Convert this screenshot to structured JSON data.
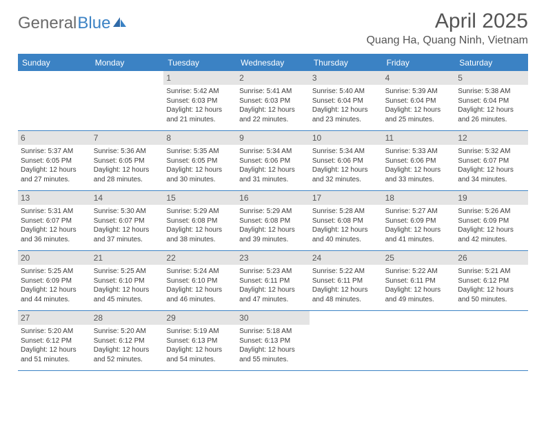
{
  "brand": {
    "name_gray": "General",
    "name_blue": "Blue"
  },
  "title": "April 2025",
  "location": "Quang Ha, Quang Ninh, Vietnam",
  "colors": {
    "accent": "#3b82c4",
    "daynum_bg": "#e4e4e4",
    "text": "#3a3a3a",
    "heading": "#555555",
    "background": "#ffffff"
  },
  "typography": {
    "title_fontsize_pt": 22,
    "location_fontsize_pt": 12,
    "weekday_fontsize_pt": 9,
    "daynum_fontsize_pt": 9,
    "body_fontsize_pt": 7.5,
    "font_family": "Arial"
  },
  "layout": {
    "columns": 7,
    "rows": 5,
    "leading_blanks": 2,
    "border_color": "#3b82c4"
  },
  "weekdays": [
    "Sunday",
    "Monday",
    "Tuesday",
    "Wednesday",
    "Thursday",
    "Friday",
    "Saturday"
  ],
  "days": [
    {
      "n": 1,
      "sunrise": "5:42 AM",
      "sunset": "6:03 PM",
      "daylight": "12 hours and 21 minutes."
    },
    {
      "n": 2,
      "sunrise": "5:41 AM",
      "sunset": "6:03 PM",
      "daylight": "12 hours and 22 minutes."
    },
    {
      "n": 3,
      "sunrise": "5:40 AM",
      "sunset": "6:04 PM",
      "daylight": "12 hours and 23 minutes."
    },
    {
      "n": 4,
      "sunrise": "5:39 AM",
      "sunset": "6:04 PM",
      "daylight": "12 hours and 25 minutes."
    },
    {
      "n": 5,
      "sunrise": "5:38 AM",
      "sunset": "6:04 PM",
      "daylight": "12 hours and 26 minutes."
    },
    {
      "n": 6,
      "sunrise": "5:37 AM",
      "sunset": "6:05 PM",
      "daylight": "12 hours and 27 minutes."
    },
    {
      "n": 7,
      "sunrise": "5:36 AM",
      "sunset": "6:05 PM",
      "daylight": "12 hours and 28 minutes."
    },
    {
      "n": 8,
      "sunrise": "5:35 AM",
      "sunset": "6:05 PM",
      "daylight": "12 hours and 30 minutes."
    },
    {
      "n": 9,
      "sunrise": "5:34 AM",
      "sunset": "6:06 PM",
      "daylight": "12 hours and 31 minutes."
    },
    {
      "n": 10,
      "sunrise": "5:34 AM",
      "sunset": "6:06 PM",
      "daylight": "12 hours and 32 minutes."
    },
    {
      "n": 11,
      "sunrise": "5:33 AM",
      "sunset": "6:06 PM",
      "daylight": "12 hours and 33 minutes."
    },
    {
      "n": 12,
      "sunrise": "5:32 AM",
      "sunset": "6:07 PM",
      "daylight": "12 hours and 34 minutes."
    },
    {
      "n": 13,
      "sunrise": "5:31 AM",
      "sunset": "6:07 PM",
      "daylight": "12 hours and 36 minutes."
    },
    {
      "n": 14,
      "sunrise": "5:30 AM",
      "sunset": "6:07 PM",
      "daylight": "12 hours and 37 minutes."
    },
    {
      "n": 15,
      "sunrise": "5:29 AM",
      "sunset": "6:08 PM",
      "daylight": "12 hours and 38 minutes."
    },
    {
      "n": 16,
      "sunrise": "5:29 AM",
      "sunset": "6:08 PM",
      "daylight": "12 hours and 39 minutes."
    },
    {
      "n": 17,
      "sunrise": "5:28 AM",
      "sunset": "6:08 PM",
      "daylight": "12 hours and 40 minutes."
    },
    {
      "n": 18,
      "sunrise": "5:27 AM",
      "sunset": "6:09 PM",
      "daylight": "12 hours and 41 minutes."
    },
    {
      "n": 19,
      "sunrise": "5:26 AM",
      "sunset": "6:09 PM",
      "daylight": "12 hours and 42 minutes."
    },
    {
      "n": 20,
      "sunrise": "5:25 AM",
      "sunset": "6:09 PM",
      "daylight": "12 hours and 44 minutes."
    },
    {
      "n": 21,
      "sunrise": "5:25 AM",
      "sunset": "6:10 PM",
      "daylight": "12 hours and 45 minutes."
    },
    {
      "n": 22,
      "sunrise": "5:24 AM",
      "sunset": "6:10 PM",
      "daylight": "12 hours and 46 minutes."
    },
    {
      "n": 23,
      "sunrise": "5:23 AM",
      "sunset": "6:11 PM",
      "daylight": "12 hours and 47 minutes."
    },
    {
      "n": 24,
      "sunrise": "5:22 AM",
      "sunset": "6:11 PM",
      "daylight": "12 hours and 48 minutes."
    },
    {
      "n": 25,
      "sunrise": "5:22 AM",
      "sunset": "6:11 PM",
      "daylight": "12 hours and 49 minutes."
    },
    {
      "n": 26,
      "sunrise": "5:21 AM",
      "sunset": "6:12 PM",
      "daylight": "12 hours and 50 minutes."
    },
    {
      "n": 27,
      "sunrise": "5:20 AM",
      "sunset": "6:12 PM",
      "daylight": "12 hours and 51 minutes."
    },
    {
      "n": 28,
      "sunrise": "5:20 AM",
      "sunset": "6:12 PM",
      "daylight": "12 hours and 52 minutes."
    },
    {
      "n": 29,
      "sunrise": "5:19 AM",
      "sunset": "6:13 PM",
      "daylight": "12 hours and 54 minutes."
    },
    {
      "n": 30,
      "sunrise": "5:18 AM",
      "sunset": "6:13 PM",
      "daylight": "12 hours and 55 minutes."
    }
  ],
  "labels": {
    "sunrise_prefix": "Sunrise: ",
    "sunset_prefix": "Sunset: ",
    "daylight_prefix": "Daylight: "
  }
}
